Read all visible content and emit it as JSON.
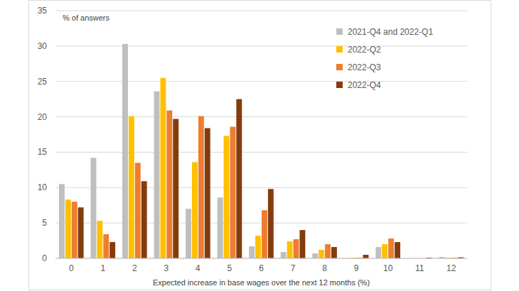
{
  "chart_data": {
    "type": "bar",
    "y_label": "% of answers",
    "x_label": "Expected increase in base wages over the next 12 months (%)",
    "categories": [
      "0",
      "1",
      "2",
      "3",
      "4",
      "5",
      "6",
      "7",
      "8",
      "9",
      "10",
      "11",
      "12"
    ],
    "series": [
      {
        "name": "2021-Q4 and 2022-Q1",
        "color": "#bfbfbf",
        "values": [
          10.5,
          14.2,
          30.3,
          23.6,
          7.0,
          8.6,
          1.7,
          0.9,
          0.7,
          0,
          1.6,
          0,
          0.2
        ]
      },
      {
        "name": "2022-Q2",
        "color": "#ffc000",
        "values": [
          8.3,
          5.3,
          20.1,
          25.5,
          13.6,
          17.3,
          3.2,
          2.4,
          1.2,
          0.1,
          2.0,
          0,
          0.1
        ]
      },
      {
        "name": "2022-Q3",
        "color": "#ed7d31",
        "values": [
          8.0,
          3.4,
          13.5,
          20.9,
          20.1,
          18.6,
          6.8,
          2.7,
          2.0,
          0.1,
          2.8,
          0,
          0.1
        ]
      },
      {
        "name": "2022-Q4",
        "color": "#843c0c",
        "values": [
          7.2,
          2.3,
          10.9,
          19.7,
          18.4,
          22.5,
          9.8,
          4.0,
          1.6,
          0.5,
          2.3,
          0.1,
          0.15
        ]
      }
    ],
    "ylim": [
      0,
      35
    ],
    "yticks": [
      0,
      5,
      10,
      15,
      20,
      25,
      30,
      35
    ],
    "grid": true,
    "legend": "upper right"
  }
}
